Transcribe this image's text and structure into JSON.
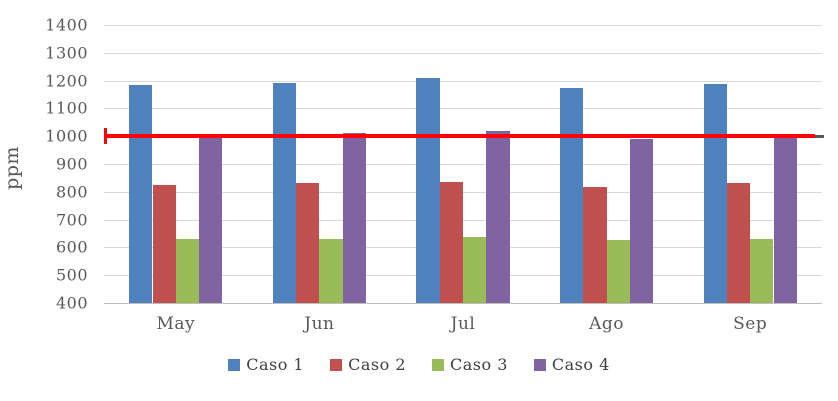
{
  "chart_data": {
    "type": "bar",
    "title": "",
    "xlabel": "",
    "ylabel": "ppm",
    "categories": [
      "May",
      "Jun",
      "Jul",
      "Ago",
      "Sep"
    ],
    "series": [
      {
        "name": "Caso 1",
        "color": "#4F81BD",
        "values": [
          1185,
          1192,
          1210,
          1175,
          1188
        ]
      },
      {
        "name": "Caso 2",
        "color": "#C0504D",
        "values": [
          825,
          831,
          836,
          818,
          831
        ]
      },
      {
        "name": "Caso 3",
        "color": "#9BBB59",
        "values": [
          630,
          632,
          636,
          628,
          632
        ]
      },
      {
        "name": "Caso 4",
        "color": "#8064A2",
        "values": [
          1005,
          1010,
          1020,
          990,
          1003
        ]
      }
    ],
    "reference_line": {
      "value": 1000,
      "color": "#FF0000"
    },
    "ylim": [
      400,
      1400
    ],
    "ytick_step": 100,
    "ytick_labels": [
      "400",
      "500",
      "600",
      "700",
      "800",
      "900",
      "1000",
      "1100",
      "1200",
      "1300",
      "1400"
    ],
    "grid": true,
    "legend_position": "bottom",
    "colors": {
      "grid": "#D9D9D9",
      "axis": "#BFBFBF",
      "tick_text": "#595959",
      "background": "#FFFFFF"
    }
  }
}
